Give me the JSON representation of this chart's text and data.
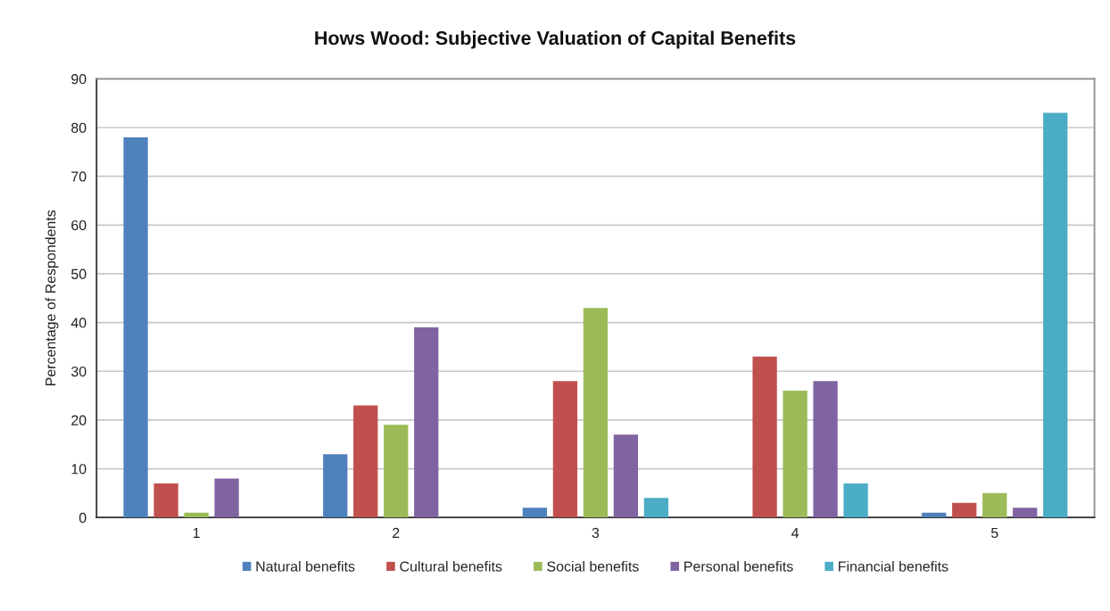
{
  "chart_data": {
    "type": "bar",
    "title": "Hows Wood: Subjective Valuation of Capital Benefits",
    "ylabel": "Percentage of Respondents",
    "categories": [
      "1",
      "2",
      "3",
      "4",
      "5"
    ],
    "series": [
      {
        "name": "Natural benefits",
        "color": "#4f81bd",
        "values": [
          78,
          13,
          2,
          null,
          1
        ]
      },
      {
        "name": "Cultural benefits",
        "color": "#c0504d",
        "values": [
          7,
          23,
          28,
          33,
          3
        ]
      },
      {
        "name": "Social benefits",
        "color": "#9bbb59",
        "values": [
          1,
          19,
          43,
          26,
          5
        ]
      },
      {
        "name": "Personal benefits",
        "color": "#8064a2",
        "values": [
          8,
          39,
          17,
          28,
          2
        ]
      },
      {
        "name": "Financial benefits",
        "color": "#4bacc6",
        "values": [
          null,
          null,
          4,
          7,
          83
        ]
      }
    ],
    "ylim": [
      0,
      90
    ],
    "yticks": [
      0,
      10,
      20,
      30,
      40,
      50,
      60,
      70,
      80,
      90
    ],
    "grid": "y",
    "legend": "bottom"
  }
}
